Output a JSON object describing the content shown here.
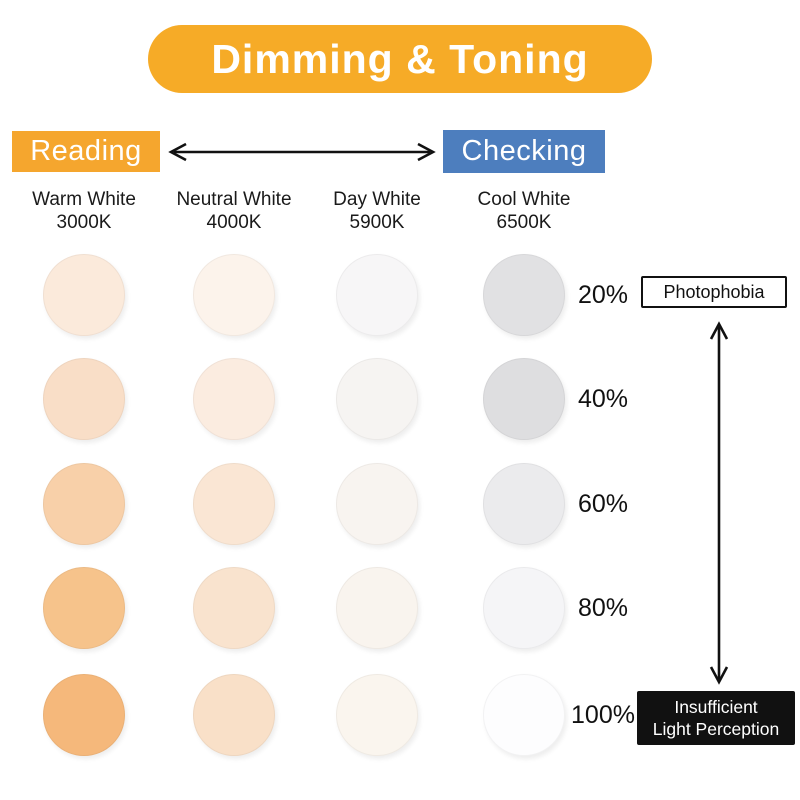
{
  "title": {
    "label": "Dimming & Toning",
    "bg": "#F6AB27",
    "text_color": "#FFFFFF"
  },
  "modes": {
    "left": {
      "label": "Reading",
      "bg": "#F5A62E"
    },
    "right": {
      "label": "Checking",
      "bg": "#4D7EBE"
    }
  },
  "arrow_color": "#111111",
  "columns": [
    {
      "name": "Warm White",
      "kelvin": "3000K",
      "swatches": [
        "#FBEADB",
        "#F9DEC7",
        "#F8D0A9",
        "#F6C38B",
        "#F5B87B"
      ]
    },
    {
      "name": "Neutral White",
      "kelvin": "4000K",
      "swatches": [
        "#FCF3EB",
        "#FBECE0",
        "#FAE6D4",
        "#F9E3CE",
        "#F9E0C8"
      ]
    },
    {
      "name": "Day White",
      "kelvin": "5900K",
      "swatches": [
        "#F7F6F7",
        "#F6F4F2",
        "#F8F4F0",
        "#F9F4EE",
        "#FAF5EE"
      ]
    },
    {
      "name": "Cool White",
      "kelvin": "6500K",
      "swatches": [
        "#E1E1E3",
        "#DEDEE0",
        "#EBEBED",
        "#F5F5F7",
        "#FDFDFE"
      ]
    }
  ],
  "dim_levels": [
    "20%",
    "40%",
    "60%",
    "80%",
    "100%"
  ],
  "annotations": {
    "top": {
      "label": "Photophobia",
      "bg": "#FFFFFF",
      "border": "#111111"
    },
    "bottom": {
      "line1": "Insufficient",
      "line2": "Light Perception",
      "bg": "#111111"
    }
  }
}
